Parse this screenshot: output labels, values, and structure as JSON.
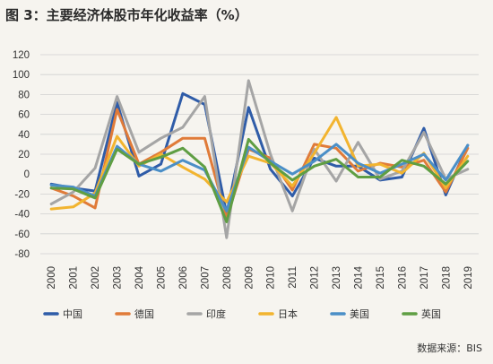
{
  "title": "图 3：主要经济体股市年化收益率（%）",
  "source": "数据来源：BIS",
  "chart_data": {
    "type": "line",
    "title": "图 3：主要经济体股市年化收益率（%）",
    "xlabel": "",
    "ylabel": "",
    "ylim": [
      -80,
      120
    ],
    "yticks": [
      -80,
      -60,
      -40,
      -20,
      0,
      20,
      40,
      60,
      80,
      100,
      120
    ],
    "grid": true,
    "legend_position": "bottom",
    "categories": [
      "2000",
      "2001",
      "2002",
      "2003",
      "2004",
      "2005",
      "2006",
      "2007",
      "2008",
      "2009",
      "2010",
      "2011",
      "2012",
      "2013",
      "2014",
      "2015",
      "2016",
      "2017",
      "2018",
      "2019"
    ],
    "series": [
      {
        "name": "中国",
        "color": "#2f5ca8",
        "values": [
          -10,
          -14,
          -17,
          72,
          -2,
          10,
          81,
          70,
          -40,
          67,
          5,
          -22,
          16,
          8,
          8,
          -6,
          -3,
          46,
          -21,
          29
        ]
      },
      {
        "name": "德国",
        "color": "#e07b39",
        "values": [
          -14,
          -22,
          -34,
          65,
          10,
          22,
          36,
          36,
          -44,
          25,
          16,
          -16,
          30,
          26,
          3,
          11,
          7,
          14,
          -18,
          26
        ]
      },
      {
        "name": "印度",
        "color": "#a5a5a5",
        "values": [
          -30,
          -18,
          6,
          78,
          22,
          36,
          47,
          78,
          -64,
          94,
          20,
          -37,
          25,
          -7,
          32,
          -5,
          3,
          42,
          -5,
          5
        ]
      },
      {
        "name": "日本",
        "color": "#f2b42f",
        "values": [
          -35,
          -33,
          -19,
          38,
          8,
          20,
          7,
          -5,
          -28,
          18,
          11,
          -12,
          21,
          57,
          8,
          10,
          1,
          21,
          -14,
          18
        ]
      },
      {
        "name": "美国",
        "color": "#4b8fc7",
        "values": [
          -11,
          -13,
          -22,
          28,
          10,
          3,
          14,
          4,
          -37,
          27,
          13,
          0,
          13,
          30,
          11,
          1,
          10,
          20,
          -6,
          29
        ]
      },
      {
        "name": "英国",
        "color": "#5f9e43",
        "values": [
          -14,
          -15,
          -24,
          25,
          10,
          17,
          26,
          7,
          -48,
          35,
          11,
          -6,
          8,
          15,
          -3,
          -3,
          14,
          8,
          -10,
          13
        ]
      }
    ]
  }
}
